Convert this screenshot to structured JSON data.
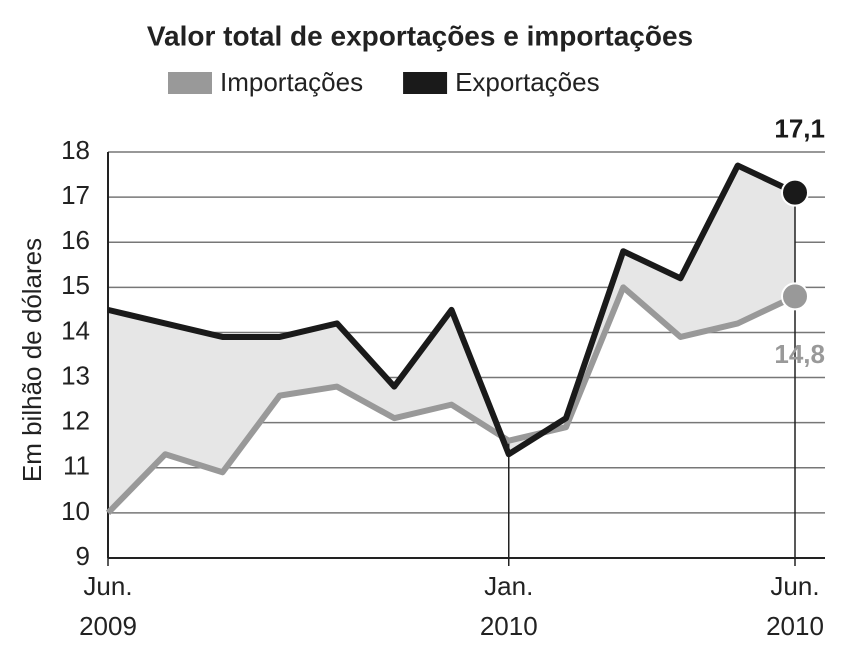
{
  "chart_data": {
    "type": "line",
    "title": "Valor total de exportações e importações",
    "y_label": "Em bilhão de dólares",
    "categories": [
      "Jun.\n2009",
      null,
      null,
      null,
      null,
      null,
      null,
      "Jan.\n2010",
      null,
      null,
      null,
      null,
      "Jun.\n2010"
    ],
    "series": [
      {
        "name": "Importações",
        "color": "#999999",
        "values": [
          10.0,
          11.3,
          10.9,
          12.6,
          12.8,
          12.1,
          12.4,
          11.6,
          11.9,
          15.0,
          13.9,
          14.2,
          14.8
        ],
        "value_labels": [
          null,
          null,
          null,
          null,
          null,
          null,
          null,
          null,
          null,
          null,
          null,
          null,
          "14,8"
        ]
      },
      {
        "name": "Exportações",
        "color": "#1a1a1a",
        "values": [
          14.5,
          14.2,
          13.9,
          13.9,
          14.2,
          12.8,
          14.5,
          11.3,
          12.1,
          15.8,
          15.2,
          17.7,
          17.1
        ],
        "value_labels": [
          null,
          null,
          null,
          null,
          null,
          null,
          null,
          null,
          null,
          null,
          null,
          null,
          "17,1"
        ]
      }
    ],
    "fill_between": "#e6e6e6",
    "ylim": [
      9,
      18
    ],
    "yticks": [
      9,
      10,
      11,
      12,
      13,
      14,
      15,
      16,
      17,
      18
    ],
    "grid": true
  }
}
